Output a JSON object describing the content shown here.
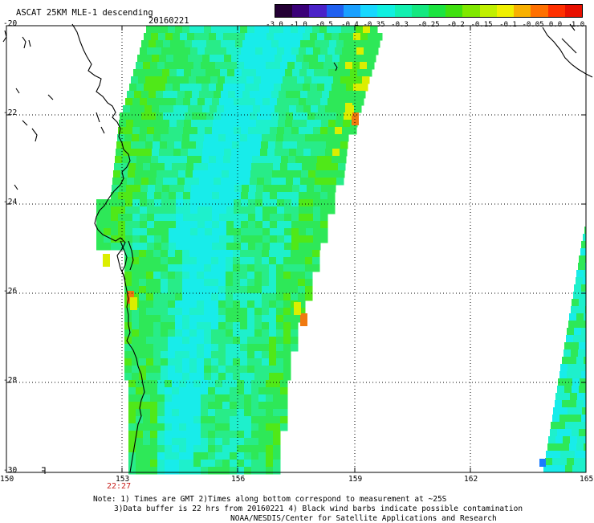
{
  "header": {
    "title": "ASCAT 25KM MLE-1 descending",
    "date": "20160221"
  },
  "colorbar": {
    "colors": [
      "#240034",
      "#3a0078",
      "#4a22c8",
      "#2060f0",
      "#1aa0ff",
      "#18d8ff",
      "#10f0e0",
      "#12f0b0",
      "#14e880",
      "#1ce440",
      "#40e010",
      "#80e800",
      "#c0f000",
      "#f0f000",
      "#f8b000",
      "#ff7000",
      "#ff3000",
      "#e81000"
    ],
    "labels": [
      "-3.0",
      "-1.0",
      "-0.5",
      "-0.4",
      "-0.35",
      "-0.3",
      "-0.25",
      "-0.2",
      "-0.15",
      "-0.1",
      "-0.05",
      "0.0",
      "1.0"
    ]
  },
  "axes": {
    "lat_labels": [
      "-20",
      "-22",
      "-24",
      "-26",
      "-28",
      "-30"
    ],
    "lon_labels": [
      "150",
      "153",
      "156",
      "159",
      "162",
      "165"
    ]
  },
  "time_label": "22:27",
  "footer": {
    "line1": "Note: 1) Times are GMT 2)Times along bottom correspond to measurement at ~25S",
    "line2": "3)Data buffer is 22 hrs from 20160221 4) Black wind barbs indicate possible contamination",
    "line3": "NOAA/NESDIS/Center for Satellite Applications and Research"
  },
  "palette": {
    "cyan": "#18ecea",
    "aqua": "#1ef0cc",
    "green1": "#28ec88",
    "green2": "#2ee858",
    "green3": "#50e818",
    "yellow": "#dcee00",
    "orange": "#f07a10",
    "blue": "#1a7cff"
  }
}
